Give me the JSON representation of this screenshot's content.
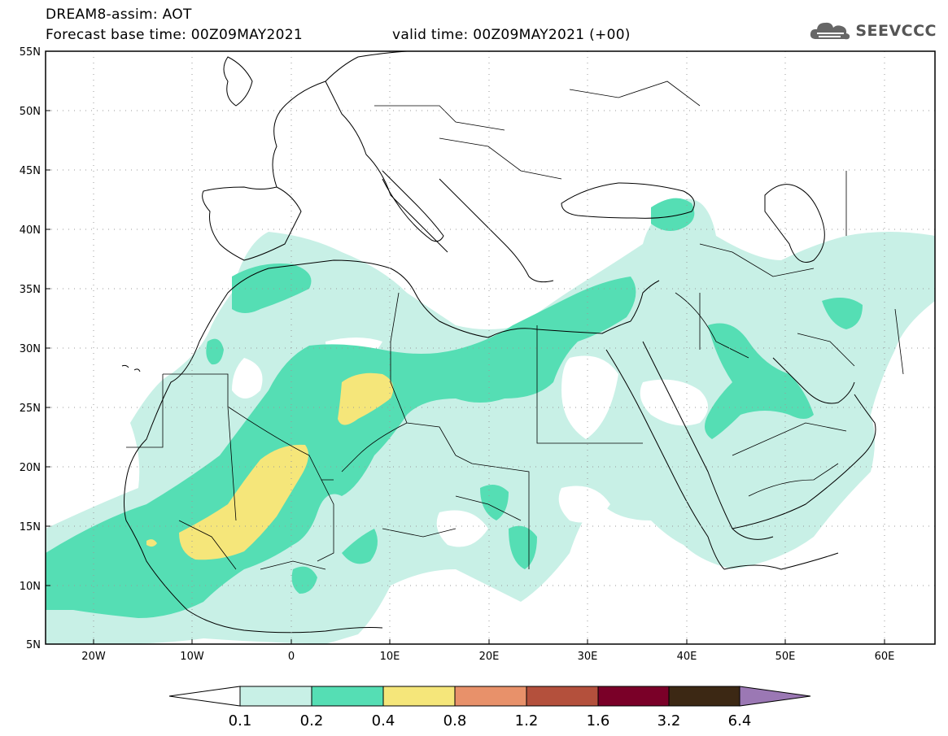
{
  "header": {
    "line1": "DREAM8-assim: AOT",
    "line2_base": "Forecast base time: 00Z09MAY2021",
    "line2_valid": "valid time: 00Z09MAY2021 (+00)"
  },
  "logo": {
    "text": "SEEVCCC",
    "icon": "cloud-icon"
  },
  "axes": {
    "lat_labels": [
      "55N",
      "50N",
      "45N",
      "40N",
      "35N",
      "30N",
      "25N",
      "20N",
      "15N",
      "10N",
      "5N"
    ],
    "lon_labels": [
      "20W",
      "10W",
      "0",
      "10E",
      "20E",
      "30E",
      "40E",
      "50E",
      "60E"
    ]
  },
  "colorbar": {
    "colors": [
      "#c8f0e6",
      "#55deb4",
      "#f5e67a",
      "#e8916a",
      "#b4503c",
      "#7a0028",
      "#3c2814",
      "#9b78b4"
    ],
    "ticks": [
      "0.1",
      "0.2",
      "0.4",
      "0.8",
      "1.2",
      "1.6",
      "3.2",
      "6.4"
    ]
  }
}
